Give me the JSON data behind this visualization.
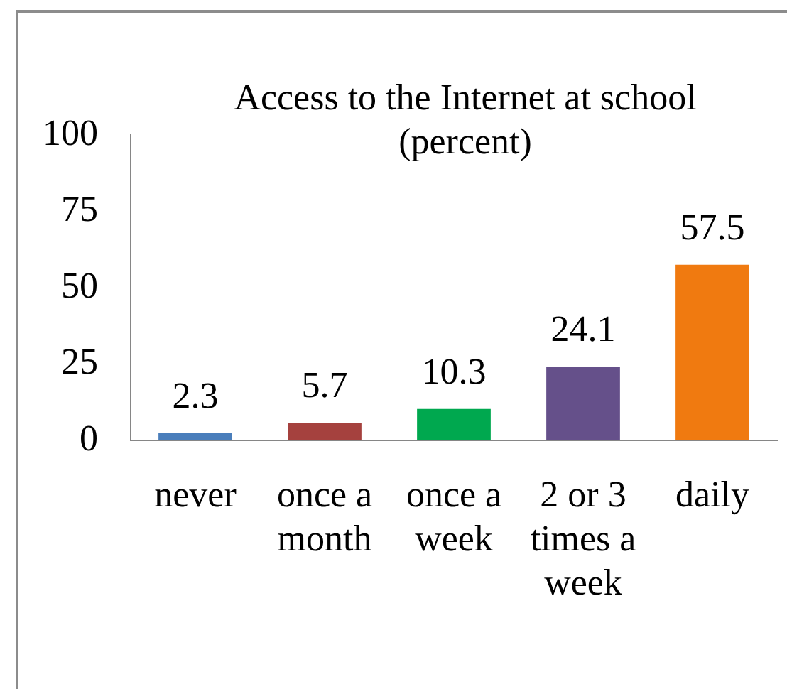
{
  "chart_data": {
    "type": "bar",
    "title": "Access to the Internet at school (percent)",
    "categories": [
      "never",
      "once a month",
      "once a week",
      "2 or 3 times a week",
      "daily"
    ],
    "values": [
      2.3,
      5.7,
      10.3,
      24.1,
      57.5
    ],
    "colors": [
      "#4a7ebb",
      "#a5413e",
      "#00a84f",
      "#65508a",
      "#f07a10"
    ],
    "ylim": [
      0,
      100
    ],
    "yticks": [
      0,
      25,
      50,
      75,
      100
    ],
    "data_labels": true
  }
}
